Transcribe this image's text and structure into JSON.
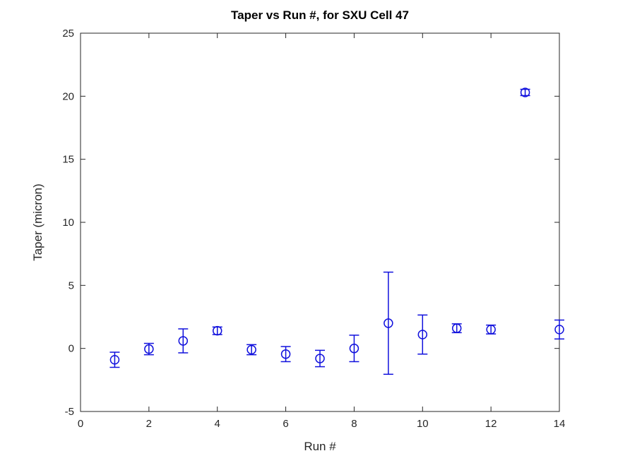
{
  "chart_data": {
    "type": "scatter",
    "subtype": "errorbar",
    "title": "Taper vs Run #, for SXU Cell 47",
    "xlabel": "Run #",
    "ylabel": "Taper (micron)",
    "xlim": [
      0,
      14
    ],
    "ylim": [
      -5,
      25
    ],
    "xticks": [
      0,
      2,
      4,
      6,
      8,
      10,
      12,
      14
    ],
    "yticks": [
      -5,
      0,
      5,
      10,
      15,
      20,
      25
    ],
    "grid": false,
    "legend_position": "none",
    "marker": "open-circle",
    "marker_color": "#1111dd",
    "axis_color": "#262626",
    "tick_label_color": "#262626",
    "background_color": "#ffffff",
    "series": [
      {
        "name": "Taper",
        "x": [
          1,
          2,
          3,
          4,
          5,
          6,
          7,
          8,
          9,
          10,
          11,
          12,
          13,
          14
        ],
        "y": [
          -0.9,
          -0.05,
          0.6,
          1.4,
          -0.1,
          -0.45,
          -0.8,
          0.0,
          2.0,
          1.1,
          1.6,
          1.5,
          20.3,
          1.5
        ],
        "yerr": [
          0.6,
          0.45,
          0.95,
          0.3,
          0.4,
          0.6,
          0.65,
          1.05,
          4.05,
          1.55,
          0.35,
          0.35,
          0.25,
          0.75
        ]
      }
    ]
  }
}
